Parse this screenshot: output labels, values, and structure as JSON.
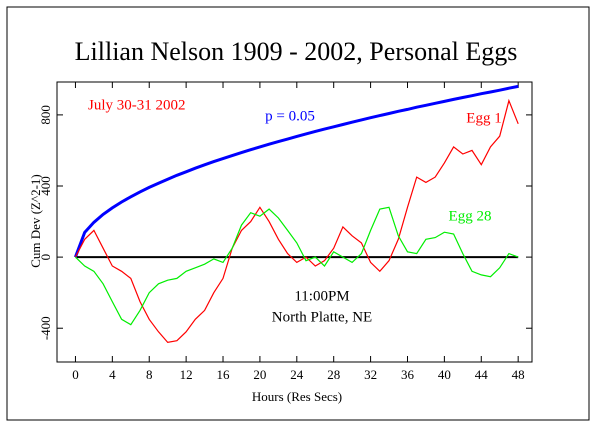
{
  "chart_data": {
    "type": "line",
    "title": "Lillian Nelson 1909 - 2002, Personal Eggs",
    "xlabel": "Hours (Res Secs)",
    "ylabel": "Cum Dev (Z^2-1)",
    "annotations": [
      "July 30-31 2002",
      "11:00PM",
      "North Platte, NE"
    ],
    "x": [
      0,
      1,
      2,
      3,
      4,
      5,
      6,
      7,
      8,
      9,
      10,
      11,
      12,
      13,
      14,
      15,
      16,
      17,
      18,
      19,
      20,
      21,
      22,
      23,
      24,
      25,
      26,
      27,
      28,
      29,
      30,
      31,
      32,
      33,
      34,
      35,
      36,
      37,
      38,
      39,
      40,
      41,
      42,
      43,
      44,
      45,
      46,
      47,
      48
    ],
    "series": [
      {
        "name": "p = 0.05",
        "color": "#0000ff",
        "values": [
          0,
          139,
          196,
          240,
          277,
          310,
          339,
          367,
          392,
          416,
          438,
          460,
          480,
          500,
          519,
          537,
          554,
          571,
          588,
          604,
          620,
          635,
          650,
          664,
          679,
          693,
          707,
          720,
          733,
          746,
          759,
          772,
          784,
          796,
          808,
          820,
          831,
          843,
          854,
          865,
          876,
          887,
          898,
          908,
          919,
          929,
          939,
          950,
          960
        ]
      },
      {
        "name": "Egg 1",
        "color": "#ff0000",
        "values": [
          0,
          100,
          150,
          50,
          -50,
          -80,
          -120,
          -250,
          -350,
          -420,
          -480,
          -470,
          -420,
          -350,
          -300,
          -200,
          -120,
          50,
          150,
          200,
          280,
          200,
          100,
          20,
          -30,
          0,
          -50,
          -20,
          50,
          170,
          120,
          80,
          -30,
          -80,
          -20,
          100,
          280,
          450,
          420,
          450,
          530,
          620,
          580,
          600,
          520,
          620,
          680,
          880,
          750
        ]
      },
      {
        "name": "Egg 28",
        "color": "#00ee00",
        "values": [
          0,
          -50,
          -80,
          -150,
          -250,
          -350,
          -380,
          -300,
          -200,
          -150,
          -130,
          -120,
          -80,
          -60,
          -40,
          -10,
          -30,
          50,
          180,
          250,
          230,
          270,
          220,
          150,
          80,
          -20,
          0,
          -50,
          30,
          0,
          -30,
          20,
          150,
          270,
          280,
          120,
          30,
          20,
          100,
          110,
          140,
          130,
          20,
          -80,
          -100,
          -110,
          -60,
          20,
          0
        ]
      }
    ],
    "xlim": [
      -2,
      49.5
    ],
    "ylim": [
      -590,
      985
    ],
    "xticks": [
      0,
      4,
      8,
      12,
      16,
      20,
      24,
      28,
      32,
      36,
      40,
      44,
      48
    ],
    "yticks": [
      -400,
      0,
      400,
      800
    ],
    "zero_line_color": "#000000"
  }
}
